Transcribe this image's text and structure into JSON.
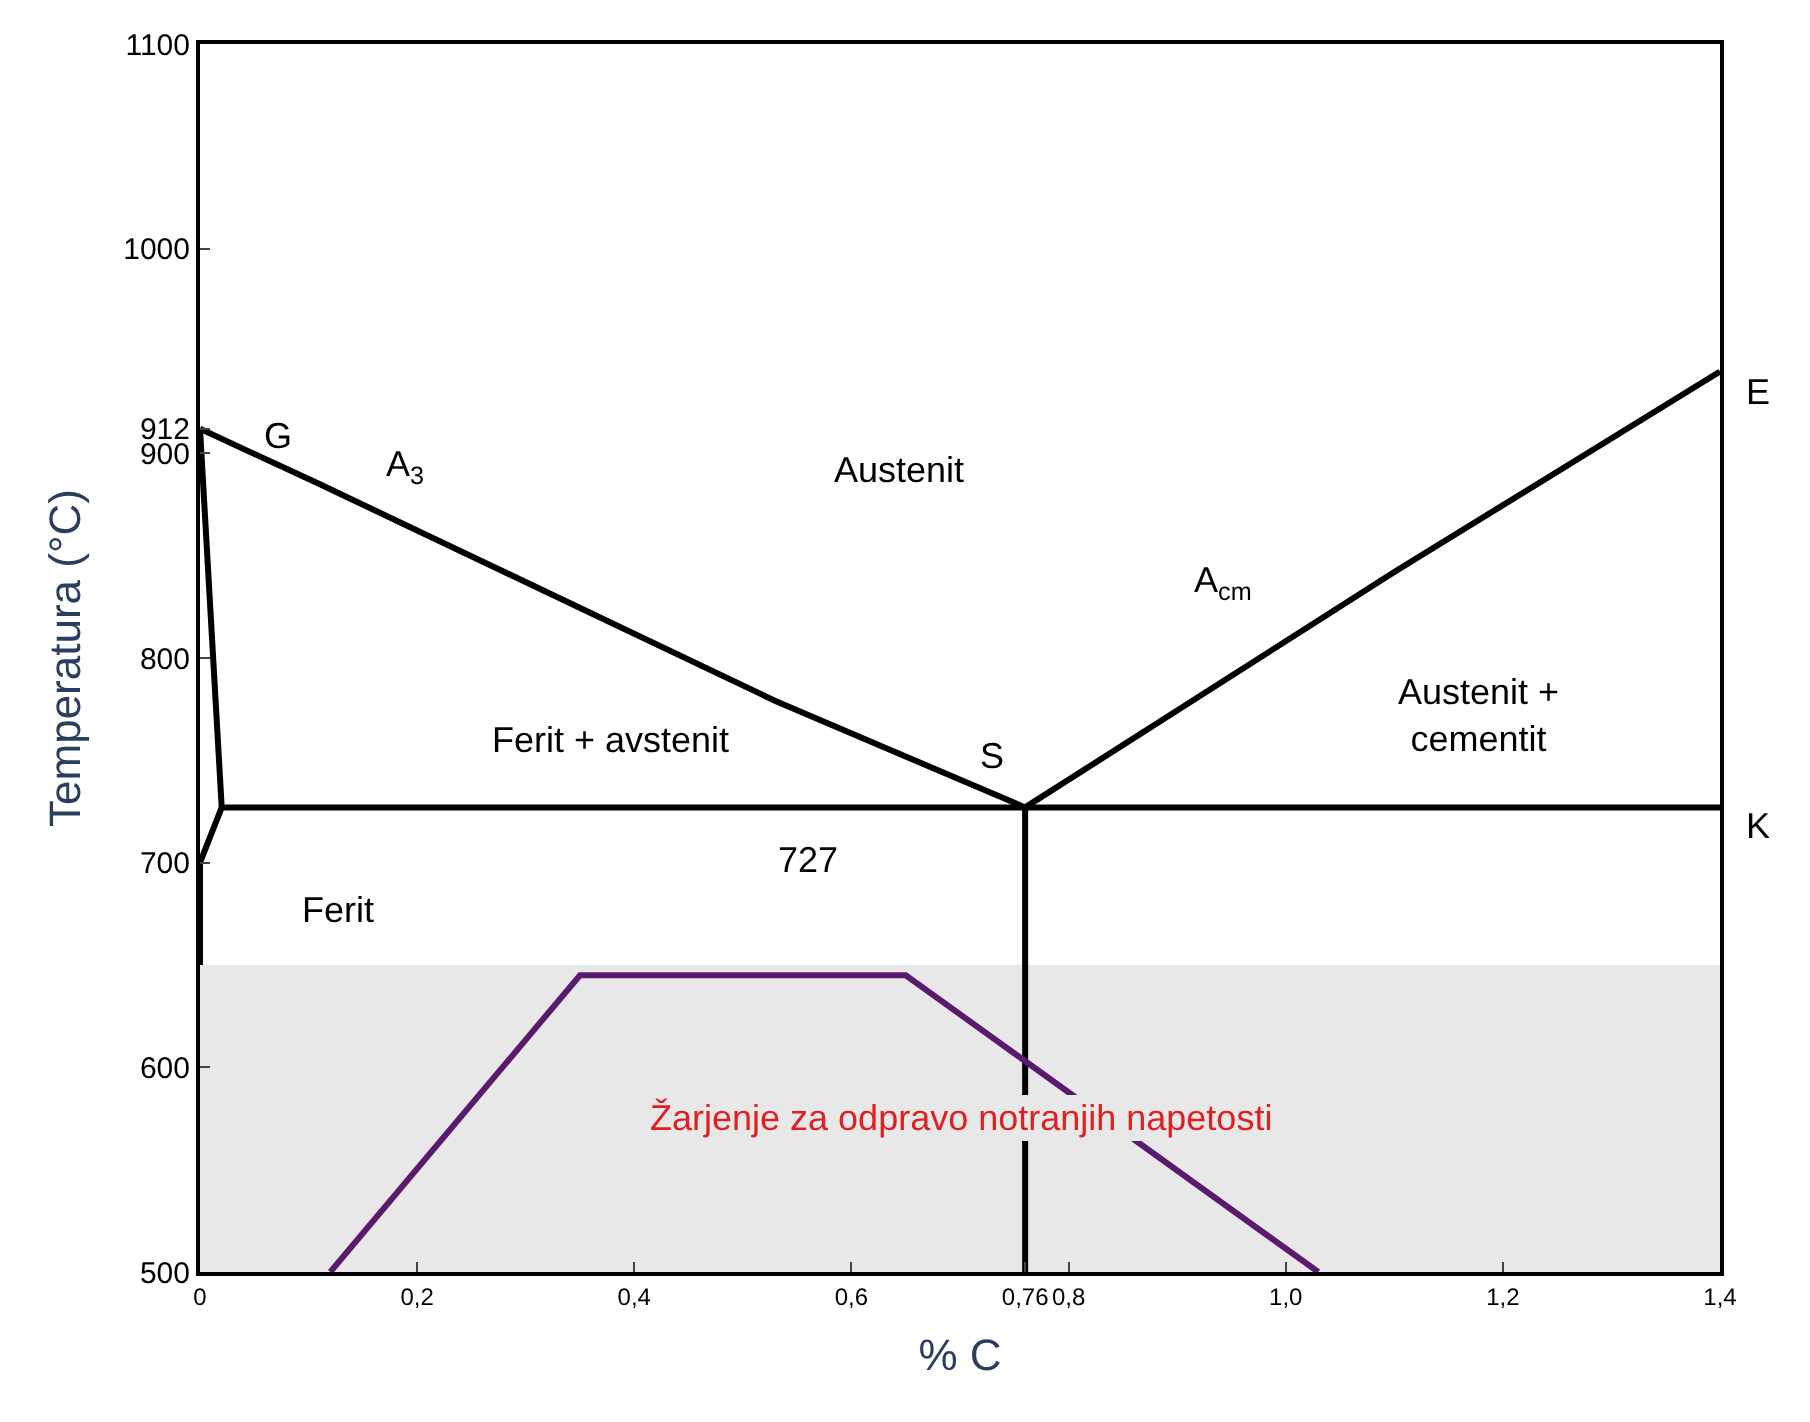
{
  "chart_data": {
    "type": "line",
    "xlabel": "% C",
    "ylabel": "Temperatura (°C)",
    "xlim": [
      0,
      1.4
    ],
    "ylim": [
      500,
      1100
    ],
    "xticks": [
      0,
      {
        "value": 0.2,
        "label": "0,2"
      },
      {
        "value": 0.4,
        "label": "0,4"
      },
      {
        "value": 0.6,
        "label": "0,6"
      },
      {
        "value": 0.76,
        "label": "0,76"
      },
      {
        "value": 0.8,
        "label": "0,8"
      },
      {
        "value": 1.0,
        "label": "1,0"
      },
      {
        "value": 1.2,
        "label": "1,2"
      },
      {
        "value": 1.4,
        "label": "1,4"
      }
    ],
    "yticks": [
      500,
      600,
      700,
      800,
      900,
      912,
      1000,
      1100
    ],
    "grid": false,
    "marker": "none",
    "line_style": "solid",
    "series": [
      {
        "color": "#000000",
        "x": [
          0,
          0.11,
          0.34,
          0.53,
          0.76
        ],
        "values": [
          912,
          885,
          827,
          779,
          727
        ]
      },
      {
        "color": "#000000",
        "x": [
          0.76,
          1.1,
          1.4
        ],
        "values": [
          727,
          842,
          940
        ]
      },
      {
        "color": "#000000",
        "x": [
          0.02,
          1.4
        ],
        "values": [
          727,
          727
        ]
      },
      {
        "color": "#000000",
        "x": [
          0,
          0.02,
          0,
          0
        ],
        "values": [
          912,
          727,
          700,
          650
        ]
      },
      {
        "color": "#000000",
        "x": [
          0.76,
          0.76
        ],
        "values": [
          727,
          500
        ]
      },
      {
        "color": "#5b1a6e",
        "x": [
          0.12,
          0.35,
          0.65,
          1.03
        ],
        "values": [
          500,
          645,
          645,
          500
        ]
      }
    ],
    "bands": [
      {
        "axis": "y",
        "from": 500,
        "to": 650,
        "label": "Žarjenje za odpravo notranjih napetosti",
        "color": "#d9d9d9"
      }
    ],
    "annotations": [
      "G",
      "A$_{3}$",
      "Austenit",
      "E",
      "A$_{cm}$",
      "S",
      "Austenit +\ncementit",
      "Ferit + avstenit",
      "K",
      "727",
      "Ferit"
    ]
  }
}
